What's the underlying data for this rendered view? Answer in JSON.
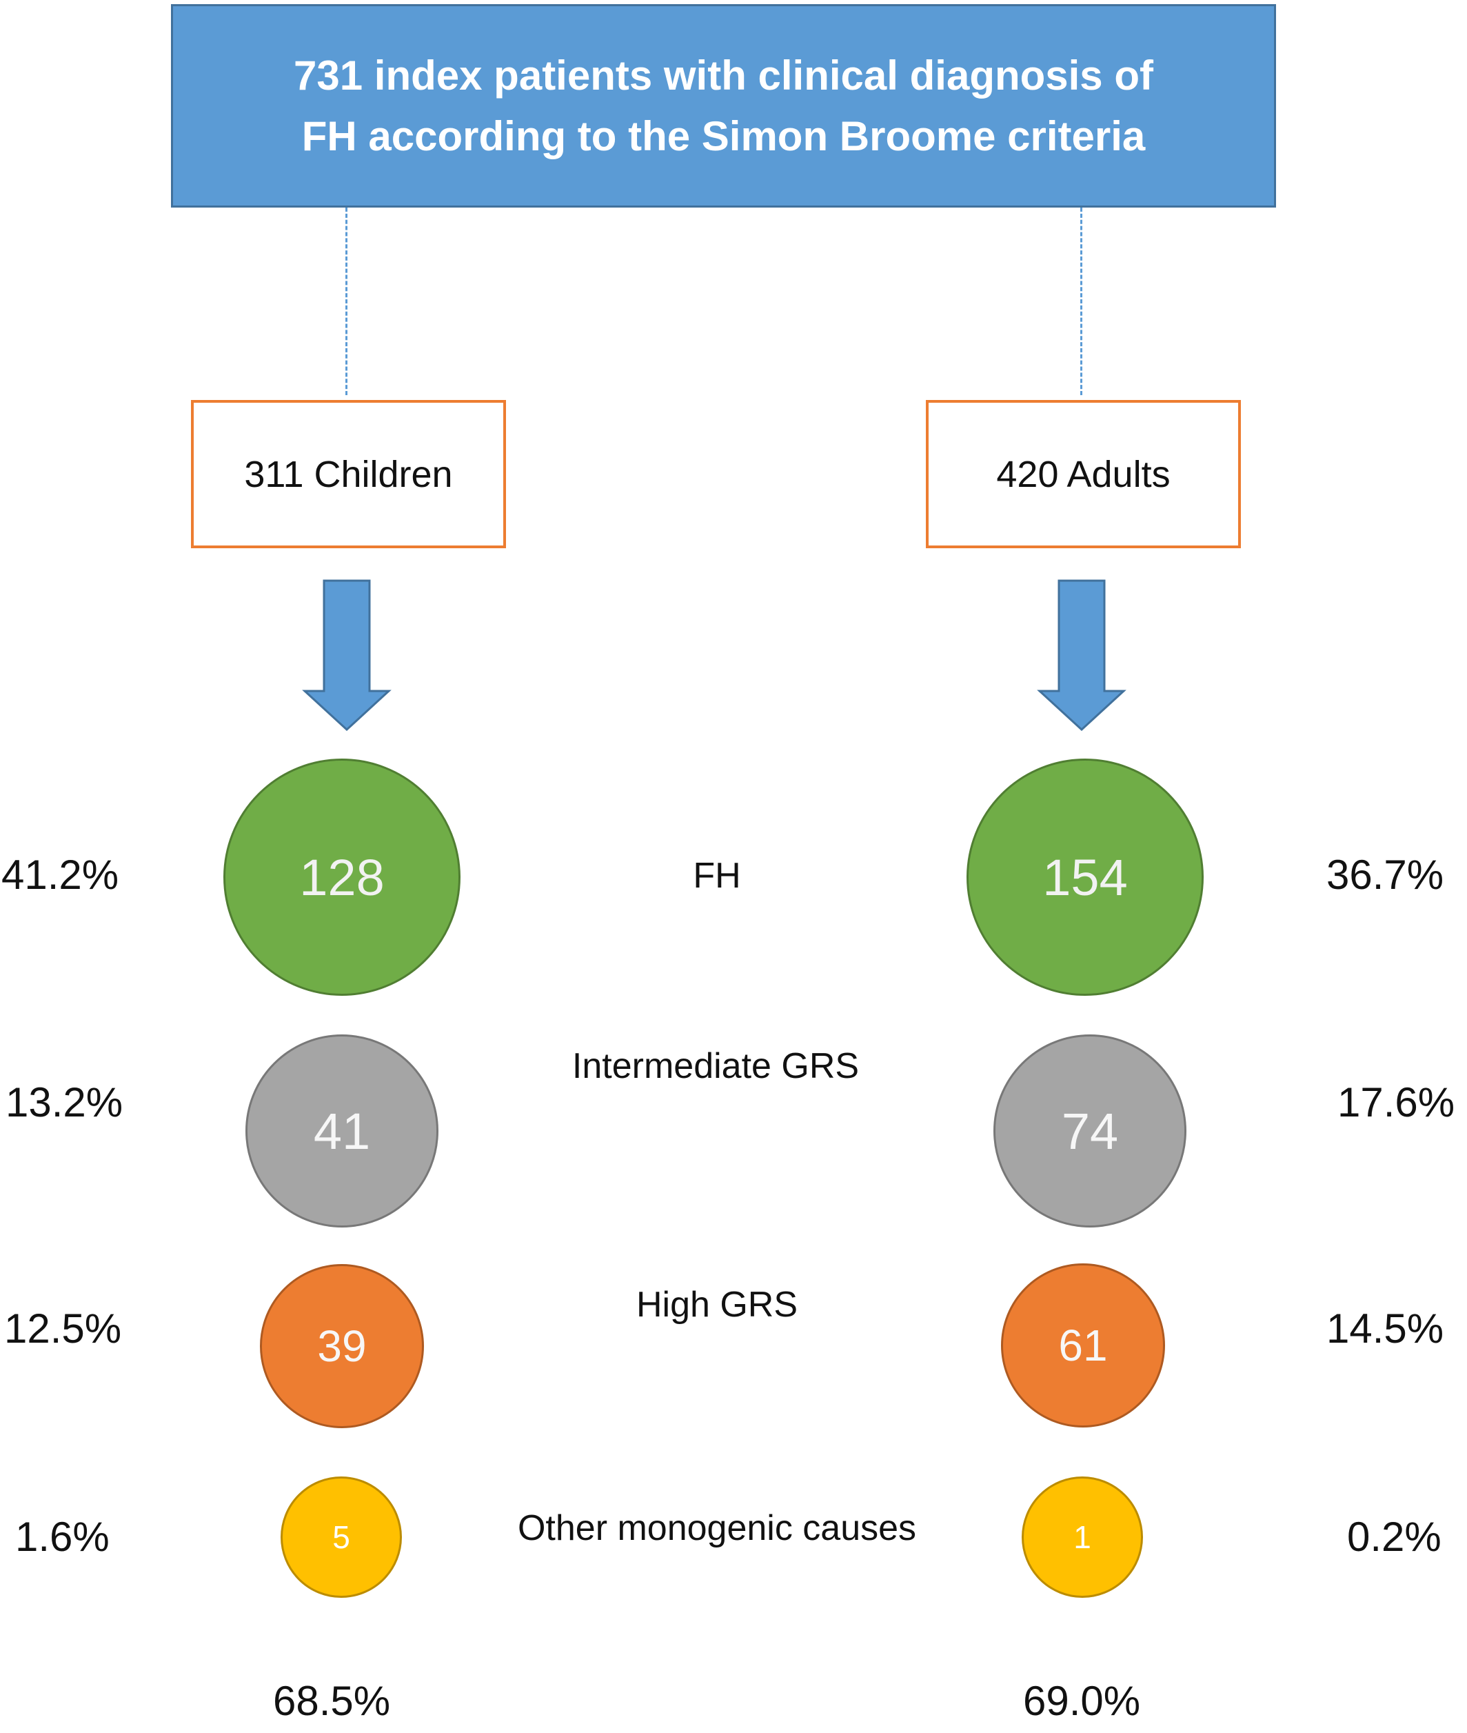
{
  "header": {
    "title": "731 index patients with clinical diagnosis of\nFH according to the Simon Broome criteria"
  },
  "groups": {
    "children": {
      "label": "311 Children"
    },
    "adults": {
      "label": "420 Adults"
    }
  },
  "categories": [
    "FH",
    "Intermediate GRS",
    "High GRS",
    "Other monogenic causes"
  ],
  "rows": [
    {
      "children_count": "128",
      "children_pct": "41.2%",
      "adults_count": "154",
      "adults_pct": "36.7%"
    },
    {
      "children_count": "41",
      "children_pct": "13.2%",
      "adults_count": "74",
      "adults_pct": "17.6%"
    },
    {
      "children_count": "39",
      "children_pct": "12.5%",
      "adults_count": "61",
      "adults_pct": "14.5%"
    },
    {
      "children_count": "5",
      "children_pct": "1.6%",
      "adults_count": "1",
      "adults_pct": "0.2%"
    }
  ],
  "totals": {
    "children": "68.5%",
    "adults": "69.0%"
  },
  "colors": {
    "header": "#5b9bd5",
    "box_border": "#ed7d31",
    "arrow": "#5b9bd5",
    "fh": "#70ad47",
    "intermediate": "#a5a5a5",
    "high": "#ed7d31",
    "other": "#ffc000"
  }
}
